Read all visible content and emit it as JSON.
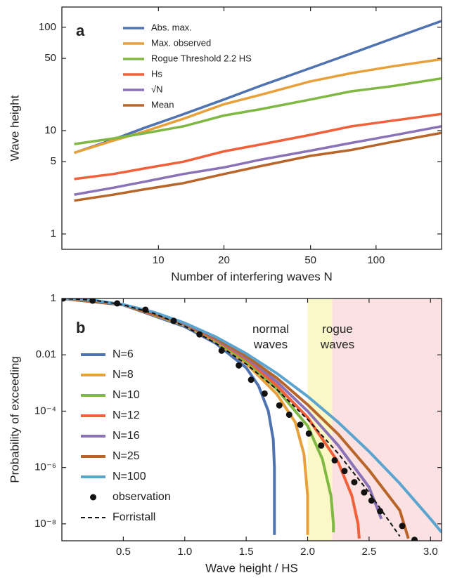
{
  "chart_data": [
    {
      "type": "line",
      "panel_label": "a",
      "xscale": "log",
      "yscale": "log",
      "xlabel": "Number of interfering waves N",
      "ylabel": "Wave height",
      "xlim": [
        3.6,
        200
      ],
      "ylim": [
        0.71,
        157
      ],
      "xticks": [
        10,
        20,
        50,
        100
      ],
      "yticks": [
        1,
        5,
        10,
        50,
        100
      ],
      "legend": "upper left",
      "x": [
        4.1,
        6.2,
        8.6,
        13,
        20,
        29,
        50,
        77,
        120,
        200
      ],
      "series": [
        {
          "name": "Abs. max.",
          "color": "#4f72b0",
          "values": [
            6.1,
            8.2,
            10.6,
            14.4,
            20,
            26.8,
            40.3,
            55.8,
            78.2,
            115
          ]
        },
        {
          "name": "Max. observed",
          "color": "#e8a13a",
          "values": [
            6.1,
            8.0,
            9.8,
            13,
            18,
            22,
            30,
            36,
            42,
            49
          ]
        },
        {
          "name": "Rogue Threshold 2.2 HS",
          "color": "#7fb843",
          "values": [
            7.4,
            8.4,
            9.4,
            11,
            14,
            16,
            20,
            24,
            27,
            32
          ]
        },
        {
          "name": "Hs",
          "color": "#f0603a",
          "values": [
            3.4,
            3.8,
            4.3,
            5.0,
            6.3,
            7.3,
            9.1,
            11,
            12.5,
            14.5
          ]
        },
        {
          "name": "√N",
          "color": "#8a72b6",
          "values": [
            2.4,
            2.8,
            3.2,
            3.8,
            4.4,
            5.2,
            6.4,
            7.6,
            9.0,
            11
          ]
        },
        {
          "name": "Mean",
          "color": "#b8652a",
          "values": [
            2.1,
            2.4,
            2.7,
            3.1,
            3.8,
            4.5,
            5.7,
            6.5,
            7.8,
            9.5
          ]
        }
      ]
    },
    {
      "type": "line",
      "panel_label": "b",
      "xscale": "linear",
      "yscale": "log",
      "xlabel": "Wave height / HS",
      "ylabel": "Probability of exceeding",
      "xlim": [
        0,
        3.09
      ],
      "ylim": [
        2.5e-09,
        1
      ],
      "xticks": [
        0.5,
        {
          "value": 1,
          "label": "1.0"
        },
        1.5,
        {
          "value": 2,
          "label": "2.0"
        },
        2.5,
        {
          "value": 3,
          "label": "3.0"
        }
      ],
      "yticks": [
        1,
        0.01,
        {
          "value": 0.0001,
          "label": "10⁻⁴"
        },
        {
          "value": 1e-06,
          "label": "10⁻⁶"
        },
        {
          "value": 1e-08,
          "label": "10⁻⁸"
        }
      ],
      "legend": "upper left",
      "regions": [
        {
          "from": 2.0,
          "to": 2.2,
          "color": "#fbf8c8"
        },
        {
          "from": 2.2,
          "to": 3.09,
          "color": "#fbe1e1"
        }
      ],
      "annotations": [
        "normal waves",
        "rogue waves"
      ],
      "series": [
        {
          "name": "N=6",
          "color": "#4f72b0",
          "style": "solid",
          "x": [
            0,
            0.5,
            1,
            1.25,
            1.5,
            1.6,
            1.68,
            1.72,
            1.73,
            1.73
          ],
          "values": [
            1,
            0.59,
            0.1,
            0.026,
            0.0035,
            0.0008,
            0.0001,
            1e-05,
            1e-06,
            4e-09
          ]
        },
        {
          "name": "N=8",
          "color": "#e8a13a",
          "style": "solid",
          "x": [
            0,
            0.5,
            1,
            1.25,
            1.5,
            1.75,
            1.9,
            1.97,
            2.0,
            2.0
          ],
          "values": [
            1,
            0.6,
            0.11,
            0.03,
            0.005,
            0.0004,
            4e-05,
            3e-06,
            1e-07,
            4e-09
          ]
        },
        {
          "name": "N=10",
          "color": "#7fb843",
          "style": "solid",
          "x": [
            0,
            0.5,
            1,
            1.25,
            1.5,
            1.75,
            2.0,
            2.12,
            2.19,
            2.21,
            2.21
          ],
          "values": [
            1,
            0.6,
            0.115,
            0.032,
            0.006,
            0.0006,
            3e-05,
            2e-06,
            1e-07,
            1e-08,
            5e-09
          ]
        },
        {
          "name": "N=12",
          "color": "#f0603a",
          "style": "solid",
          "x": [
            0,
            0.5,
            1,
            1.25,
            1.5,
            1.75,
            2.0,
            2.25,
            2.36,
            2.41,
            2.42
          ],
          "values": [
            1,
            0.6,
            0.12,
            0.035,
            0.007,
            0.0008,
            6e-05,
            1.5e-06,
            1e-07,
            1e-08,
            3e-09
          ]
        },
        {
          "name": "N=16",
          "color": "#8a72b6",
          "style": "solid",
          "x": [
            0,
            0.5,
            1,
            1.25,
            1.5,
            1.75,
            2,
            2.25,
            2.5,
            2.6
          ],
          "values": [
            1,
            0.6,
            0.125,
            0.038,
            0.008,
            0.0011,
            0.0001,
            6e-06,
            2e-07,
            1.5e-08
          ]
        },
        {
          "name": "N=25",
          "color": "#b8652a",
          "style": "solid",
          "x": [
            0,
            0.5,
            1,
            1.25,
            1.5,
            1.75,
            2,
            2.25,
            2.5,
            2.75,
            2.82
          ],
          "values": [
            1,
            0.6,
            0.13,
            0.04,
            0.009,
            0.0015,
            0.00017,
            1.5e-05,
            8e-07,
            3e-08,
            3e-09
          ]
        },
        {
          "name": "N=100",
          "color": "#5ba4d0",
          "style": "solid",
          "x": [
            0,
            0.25,
            0.5,
            0.75,
            1,
            1.25,
            1.5,
            1.75,
            2,
            2.25,
            2.5,
            2.75,
            3,
            3.09
          ],
          "values": [
            1,
            0.882,
            0.607,
            0.325,
            0.135,
            0.0439,
            0.0111,
            0.00219,
            0.000335,
            4e-05,
            3.7e-06,
            2.7e-07,
            1.5e-08,
            5e-09
          ]
        },
        {
          "name": "observation",
          "color": "#111111",
          "style": "dots",
          "x": [
            0.01,
            0.25,
            0.45,
            0.68,
            0.91,
            1.12,
            1.3,
            1.44,
            1.54,
            1.65,
            1.77,
            1.85,
            1.94,
            2.01,
            2.11,
            2.22,
            2.3,
            2.38,
            2.46,
            2.52,
            2.59,
            2.77,
            2.87
          ],
          "values": [
            1,
            0.84,
            0.67,
            0.4,
            0.16,
            0.053,
            0.014,
            0.0042,
            0.0013,
            0.00042,
            0.00016,
            7.5e-05,
            3.3e-05,
            1.6e-05,
            6e-06,
            1.8e-06,
            7.5e-07,
            3e-07,
            1.3e-07,
            6.7e-08,
            2.8e-08,
            8.4e-09,
            2.7e-09
          ]
        },
        {
          "name": "Forristall",
          "color": "#111111",
          "style": "dashed",
          "x": [
            0,
            0.25,
            0.5,
            0.75,
            1,
            1.25,
            1.5,
            1.75,
            2,
            2.25,
            2.5,
            2.75
          ],
          "values": [
            1,
            0.888,
            0.596,
            0.293,
            0.104,
            0.0263,
            0.0047,
            0.00059,
            5.1e-05,
            3.1e-06,
            1.3e-07,
            3.6e-09
          ]
        }
      ]
    }
  ]
}
